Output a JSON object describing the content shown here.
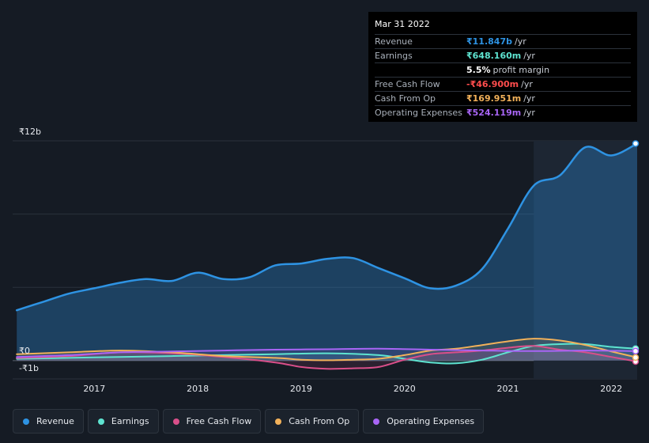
{
  "tooltip": {
    "date": "Mar 31 2022",
    "rows": [
      {
        "label": "Revenue",
        "value": "₹11.847b",
        "unit": "/yr",
        "color": "#2e93e3"
      },
      {
        "label": "Earnings",
        "value": "₹648.160m",
        "unit": "/yr",
        "color": "#5ee3d0"
      },
      {
        "label": "",
        "value": "5.5%",
        "unit": "profit margin",
        "color": "#ffffff"
      },
      {
        "label": "Free Cash Flow",
        "value": "-₹46.900m",
        "unit": "/yr",
        "color": "#ff4d4d"
      },
      {
        "label": "Cash From Op",
        "value": "₹169.951m",
        "unit": "/yr",
        "color": "#f2b15a"
      },
      {
        "label": "Operating Expenses",
        "value": "₹524.119m",
        "unit": "/yr",
        "color": "#a865f5"
      }
    ]
  },
  "y_axis": {
    "top_label": "₹12b",
    "zero_label": "₹0",
    "bottom_label": "-₹1b"
  },
  "legend": [
    {
      "label": "Revenue",
      "color": "#2e93e3"
    },
    {
      "label": "Earnings",
      "color": "#5ee3d0"
    },
    {
      "label": "Free Cash Flow",
      "color": "#d94f8a"
    },
    {
      "label": "Cash From Op",
      "color": "#f2b15a"
    },
    {
      "label": "Operating Expenses",
      "color": "#a865f5"
    }
  ],
  "chart_data": {
    "type": "area",
    "xlabel": "",
    "ylabel": "",
    "ylim": [
      -1,
      12
    ],
    "x_ticks": [
      "2017",
      "2018",
      "2019",
      "2020",
      "2021",
      "2022"
    ],
    "x_range": [
      2016.21,
      2022.25
    ],
    "highlight_from": 2021.25,
    "grid": true,
    "series": [
      {
        "name": "Revenue",
        "color": "#2e93e3",
        "x": [
          2016.25,
          2016.5,
          2016.75,
          2017.0,
          2017.25,
          2017.5,
          2017.75,
          2018.0,
          2018.25,
          2018.5,
          2018.75,
          2019.0,
          2019.25,
          2019.5,
          2019.75,
          2020.0,
          2020.25,
          2020.5,
          2020.75,
          2021.0,
          2021.25,
          2021.5,
          2021.75,
          2022.0,
          2022.25
        ],
        "values": [
          2.75,
          3.2,
          3.65,
          3.95,
          4.25,
          4.45,
          4.35,
          4.8,
          4.45,
          4.55,
          5.2,
          5.3,
          5.55,
          5.6,
          5.05,
          4.5,
          3.95,
          4.1,
          5.0,
          7.2,
          9.55,
          10.1,
          11.65,
          11.2,
          11.85
        ]
      },
      {
        "name": "Earnings",
        "color": "#5ee3d0",
        "x": [
          2016.25,
          2016.75,
          2017.25,
          2017.75,
          2018.25,
          2018.75,
          2019.25,
          2019.75,
          2020.0,
          2020.25,
          2020.5,
          2020.75,
          2021.0,
          2021.25,
          2021.5,
          2021.75,
          2022.0,
          2022.25
        ],
        "values": [
          0.1,
          0.15,
          0.2,
          0.25,
          0.3,
          0.35,
          0.4,
          0.3,
          0.1,
          -0.1,
          -0.15,
          0.05,
          0.45,
          0.8,
          0.9,
          0.9,
          0.75,
          0.65
        ]
      },
      {
        "name": "Free Cash Flow",
        "color": "#d94f8a",
        "x": [
          2016.25,
          2016.75,
          2017.25,
          2017.75,
          2018.25,
          2018.75,
          2019.0,
          2019.25,
          2019.5,
          2019.75,
          2020.0,
          2020.25,
          2020.5,
          2020.75,
          2021.0,
          2021.25,
          2021.5,
          2021.75,
          2022.0,
          2022.25
        ],
        "values": [
          0.15,
          0.25,
          0.45,
          0.4,
          0.2,
          -0.1,
          -0.35,
          -0.45,
          -0.42,
          -0.35,
          0.05,
          0.35,
          0.45,
          0.55,
          0.7,
          0.8,
          0.6,
          0.45,
          0.2,
          -0.05
        ]
      },
      {
        "name": "Cash From Op",
        "color": "#f2b15a",
        "x": [
          2016.25,
          2016.75,
          2017.25,
          2017.75,
          2018.25,
          2018.75,
          2019.0,
          2019.25,
          2019.5,
          2019.75,
          2020.0,
          2020.25,
          2020.5,
          2020.75,
          2021.0,
          2021.25,
          2021.5,
          2021.75,
          2022.0,
          2022.25
        ],
        "values": [
          0.35,
          0.45,
          0.55,
          0.45,
          0.25,
          0.15,
          0.05,
          0.02,
          0.05,
          0.1,
          0.3,
          0.55,
          0.65,
          0.85,
          1.05,
          1.2,
          1.1,
          0.85,
          0.5,
          0.17
        ]
      },
      {
        "name": "Operating Expenses",
        "color": "#a865f5",
        "x": [
          2016.25,
          2016.75,
          2017.25,
          2017.75,
          2018.25,
          2018.75,
          2019.25,
          2019.75,
          2020.25,
          2020.75,
          2021.25,
          2021.75,
          2022.25
        ],
        "values": [
          0.2,
          0.3,
          0.45,
          0.5,
          0.55,
          0.6,
          0.62,
          0.65,
          0.6,
          0.55,
          0.52,
          0.55,
          0.52
        ]
      }
    ]
  }
}
